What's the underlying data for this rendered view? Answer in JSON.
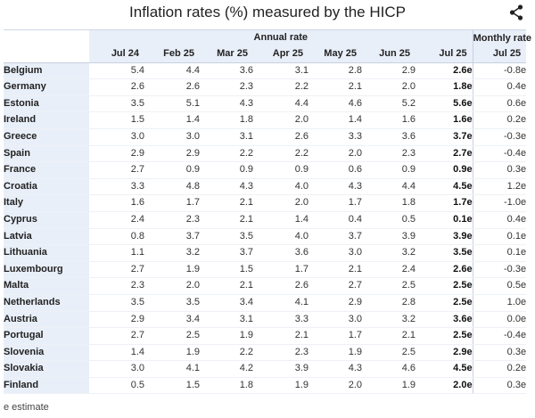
{
  "title": "Inflation rates (%) measured by the HICP",
  "icons": {
    "share": "share-icon"
  },
  "groups": {
    "annual": "Annual rate",
    "monthly": "Monthly rate"
  },
  "footnote": "e estimate",
  "chart_data": {
    "type": "table",
    "title": "Inflation rates (%) measured by the HICP",
    "columns": [
      "Jul 24",
      "Feb 25",
      "Mar 25",
      "Apr 25",
      "May 25",
      "Jun 25",
      "Jul 25",
      "Jul 25"
    ],
    "column_groups": [
      {
        "name": "Annual rate",
        "span": 7
      },
      {
        "name": "Monthly rate",
        "span": 1
      }
    ],
    "rows": [
      {
        "country": "Belgium",
        "values": [
          "5.4",
          "4.4",
          "3.6",
          "3.1",
          "2.8",
          "2.9",
          "2.6e",
          "-0.8e"
        ]
      },
      {
        "country": "Germany",
        "values": [
          "2.6",
          "2.6",
          "2.3",
          "2.2",
          "2.1",
          "2.0",
          "1.8e",
          "0.4e"
        ]
      },
      {
        "country": "Estonia",
        "values": [
          "3.5",
          "5.1",
          "4.3",
          "4.4",
          "4.6",
          "5.2",
          "5.6e",
          "0.6e"
        ]
      },
      {
        "country": "Ireland",
        "values": [
          "1.5",
          "1.4",
          "1.8",
          "2.0",
          "1.4",
          "1.6",
          "1.6e",
          "0.2e"
        ]
      },
      {
        "country": "Greece",
        "values": [
          "3.0",
          "3.0",
          "3.1",
          "2.6",
          "3.3",
          "3.6",
          "3.7e",
          "-0.3e"
        ]
      },
      {
        "country": "Spain",
        "values": [
          "2.9",
          "2.9",
          "2.2",
          "2.2",
          "2.0",
          "2.3",
          "2.7e",
          "-0.4e"
        ]
      },
      {
        "country": "France",
        "values": [
          "2.7",
          "0.9",
          "0.9",
          "0.9",
          "0.6",
          "0.9",
          "0.9e",
          "0.3e"
        ]
      },
      {
        "country": "Croatia",
        "values": [
          "3.3",
          "4.8",
          "4.3",
          "4.0",
          "4.3",
          "4.4",
          "4.5e",
          "1.2e"
        ]
      },
      {
        "country": "Italy",
        "values": [
          "1.6",
          "1.7",
          "2.1",
          "2.0",
          "1.7",
          "1.8",
          "1.7e",
          "-1.0e"
        ]
      },
      {
        "country": "Cyprus",
        "values": [
          "2.4",
          "2.3",
          "2.1",
          "1.4",
          "0.4",
          "0.5",
          "0.1e",
          "0.4e"
        ]
      },
      {
        "country": "Latvia",
        "values": [
          "0.8",
          "3.7",
          "3.5",
          "4.0",
          "3.7",
          "3.9",
          "3.9e",
          "0.1e"
        ]
      },
      {
        "country": "Lithuania",
        "values": [
          "1.1",
          "3.2",
          "3.7",
          "3.6",
          "3.0",
          "3.2",
          "3.5e",
          "0.1e"
        ]
      },
      {
        "country": "Luxembourg",
        "values": [
          "2.7",
          "1.9",
          "1.5",
          "1.7",
          "2.1",
          "2.4",
          "2.6e",
          "-0.3e"
        ]
      },
      {
        "country": "Malta",
        "values": [
          "2.3",
          "2.0",
          "2.1",
          "2.6",
          "2.7",
          "2.5",
          "2.5e",
          "0.5e"
        ]
      },
      {
        "country": "Netherlands",
        "values": [
          "3.5",
          "3.5",
          "3.4",
          "4.1",
          "2.9",
          "2.8",
          "2.5e",
          "1.0e"
        ]
      },
      {
        "country": "Austria",
        "values": [
          "2.9",
          "3.4",
          "3.1",
          "3.3",
          "3.0",
          "3.2",
          "3.6e",
          "0.0e"
        ]
      },
      {
        "country": "Portugal",
        "values": [
          "2.7",
          "2.5",
          "1.9",
          "2.1",
          "1.7",
          "2.1",
          "2.5e",
          "-0.4e"
        ]
      },
      {
        "country": "Slovenia",
        "values": [
          "1.4",
          "1.9",
          "2.2",
          "2.3",
          "1.9",
          "2.5",
          "2.9e",
          "0.3e"
        ]
      },
      {
        "country": "Slovakia",
        "values": [
          "3.0",
          "4.1",
          "4.2",
          "3.9",
          "4.3",
          "4.6",
          "4.5e",
          "0.2e"
        ]
      },
      {
        "country": "Finland",
        "values": [
          "0.5",
          "1.5",
          "1.8",
          "1.9",
          "2.0",
          "1.9",
          "2.0e",
          "0.3e"
        ]
      }
    ]
  }
}
